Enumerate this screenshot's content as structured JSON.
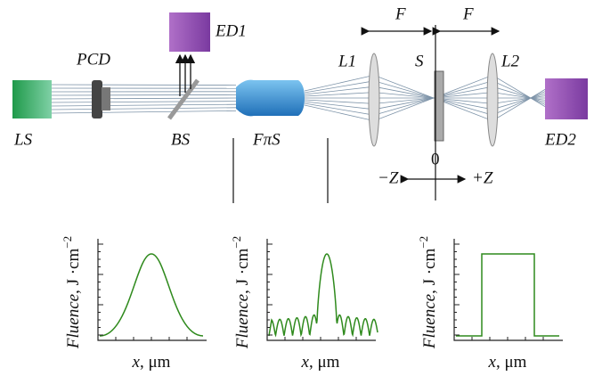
{
  "components": {
    "ls": "LS",
    "pcd": "PCD",
    "ed1": "ED1",
    "bs": "BS",
    "fps": "FπS",
    "l1": "L1",
    "s": "S",
    "l2": "L2",
    "ed2": "ED2"
  },
  "focal": {
    "left": "F",
    "right": "F"
  },
  "z_axis": {
    "origin": "0",
    "minus": "−Z",
    "plus": "+Z"
  },
  "plots": [
    {
      "y_label": "Fluence",
      "y_unit": ", J ·cm",
      "y_exp": "−2",
      "x_label": "x",
      "x_unit": ", μm"
    },
    {
      "y_label": "Fluence",
      "y_unit": ", J ·cm",
      "y_exp": "−2",
      "x_label": "x",
      "x_unit": ", μm"
    },
    {
      "y_label": "Fluence",
      "y_unit": ", J ·cm",
      "y_exp": "−2",
      "x_label": "x",
      "x_unit": ", μm"
    }
  ]
}
